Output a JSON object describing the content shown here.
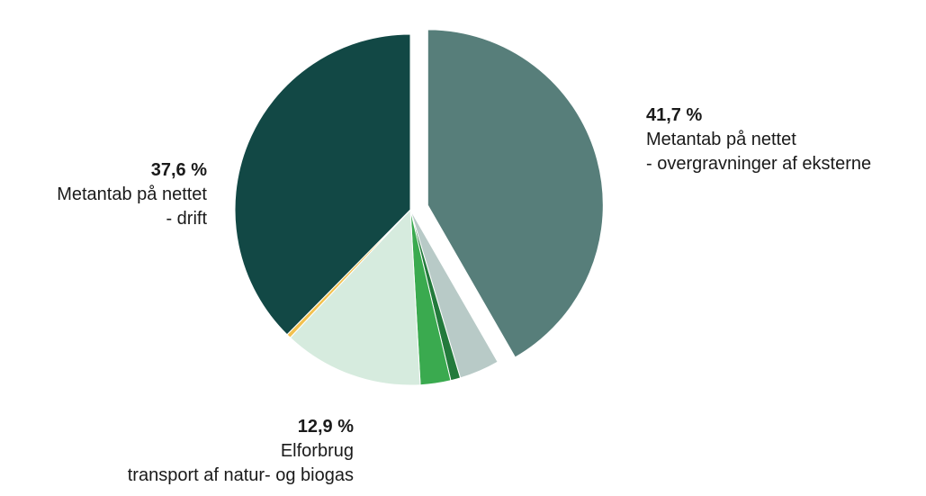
{
  "chart_data": {
    "type": "pie",
    "title": "",
    "slices": [
      {
        "label": "Metantab på nettet - overgravninger af eksterne",
        "value": 41.7,
        "color": "#577e7a",
        "exploded": true
      },
      {
        "label": "",
        "value": 3.7,
        "color": "#b8cac7"
      },
      {
        "label": "",
        "value": 0.9,
        "color": "#237a3c"
      },
      {
        "label": "",
        "value": 2.8,
        "color": "#3aaa4f"
      },
      {
        "label": "Elforbrug transport af natur- og biogas",
        "value": 12.9,
        "color": "#d6ebde"
      },
      {
        "label": "",
        "value": 0.4,
        "color": "#f2c14e"
      },
      {
        "label": "Metantab på nettet - drift",
        "value": 37.6,
        "color": "#124845"
      }
    ],
    "start_angle_deg": 0,
    "direction": "clockwise"
  },
  "labels": {
    "right": {
      "pct": "41,7 %",
      "line1": "Metantab på nettet",
      "line2": "- overgravninger af eksterne"
    },
    "left": {
      "pct": "37,6 %",
      "line1": "Metantab på nettet",
      "line2": "- drift"
    },
    "bottom": {
      "pct": "12,9 %",
      "line1": "Elforbrug",
      "line2": "transport af natur- og biogas"
    }
  }
}
